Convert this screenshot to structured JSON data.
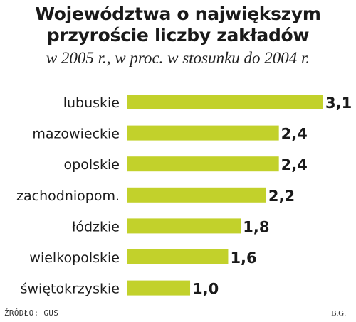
{
  "chart_data": {
    "type": "bar",
    "orientation": "horizontal",
    "title": "Województwa o największym przyroście liczby zakładów",
    "title_lines": [
      "Województwa o największym",
      "przyroście liczby zakładów"
    ],
    "subtitle": "w 2005 r., w proc. w stosunku do 2004 r.",
    "categories": [
      "lubuskie",
      "mazowieckie",
      "opolskie",
      "zachodniopom.",
      "łódzkie",
      "wielkopolskie",
      "świętokrzyskie"
    ],
    "values": [
      3.1,
      2.4,
      2.4,
      2.2,
      1.8,
      1.6,
      1.0
    ],
    "value_labels": [
      "3,1",
      "2,4",
      "2,4",
      "2,2",
      "1,8",
      "1,6",
      "1,0"
    ],
    "xlim": [
      0,
      3.1
    ],
    "bar_color": "#c2d12b",
    "grid": false
  },
  "source": "ŹRÓDŁO: GUS",
  "author": "B.G."
}
